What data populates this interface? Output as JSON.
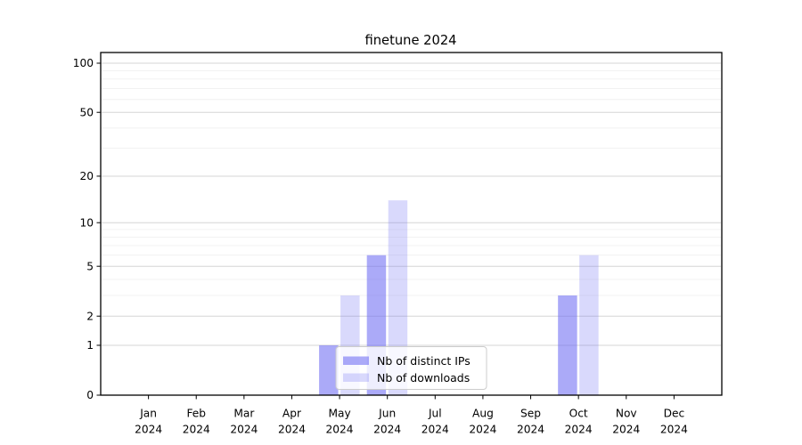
{
  "chart_data": {
    "type": "bar",
    "title": "finetune 2024",
    "categories": [
      "Jan",
      "Feb",
      "Mar",
      "Apr",
      "May",
      "Jun",
      "Jul",
      "Aug",
      "Sep",
      "Oct",
      "Nov",
      "Dec"
    ],
    "category_year": "2024",
    "series": [
      {
        "name": "Nb of distinct IPs",
        "color": "rgba(105,103,242,0.56)",
        "values": [
          0,
          0,
          0,
          0,
          1,
          6,
          0,
          0,
          0,
          3,
          0,
          0
        ]
      },
      {
        "name": "Nb of downloads",
        "color": "rgba(105,103,242,0.25)",
        "values": [
          0,
          0,
          0,
          0,
          3,
          14,
          0,
          0,
          0,
          6,
          0,
          0
        ]
      }
    ],
    "xlabel": "",
    "ylabel": "",
    "yscale": "log1p",
    "yticks": [
      0,
      1,
      2,
      5,
      10,
      20,
      50,
      100
    ],
    "grid_minor_values": [
      3,
      4,
      6,
      7,
      8,
      9,
      30,
      40,
      60,
      70,
      80,
      90
    ],
    "ylim": [
      0,
      115
    ],
    "grid": true,
    "legend_position": "lower center",
    "legend_items": [
      "Nb of distinct IPs",
      "Nb of downloads"
    ]
  },
  "colors": {
    "background": "#ffffff",
    "bar_base": "#6967f2",
    "bar_ips_rendered": "#acabf5",
    "bar_downloads_rendered": "#dadaf8",
    "grid_major": "#d6d6d6",
    "grid_minor": "#f0f0f0",
    "spine": "#000000",
    "legend_border": "#cccccc",
    "legend_bg": "rgba(255,255,255,0.8)"
  }
}
